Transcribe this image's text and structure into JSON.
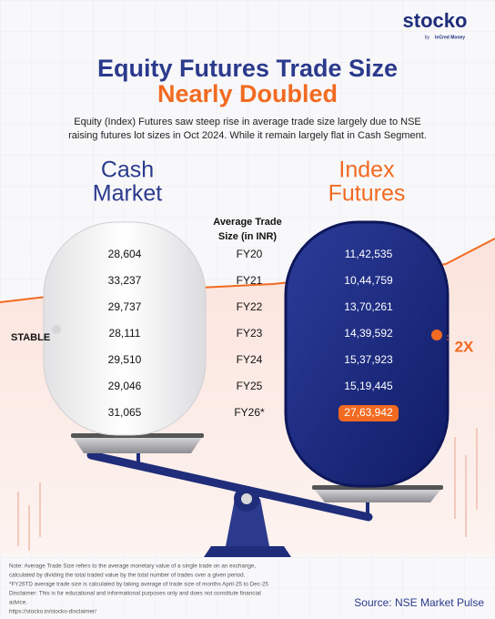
{
  "brand": {
    "name": "stocko",
    "by": "by",
    "partner": "InCred Money"
  },
  "title": {
    "line1": "Equity Futures Trade Size",
    "line2": "Nearly Doubled"
  },
  "description": {
    "line1": "Equity (Index) Futures saw steep rise in average trade size largely due to NSE",
    "line2": "raising futures lot sizes in Oct 2024. While it remain largely flat in Cash Segment."
  },
  "left_heading": {
    "line1": "Cash",
    "line2": "Market"
  },
  "right_heading": {
    "line1": "Index",
    "line2": "Futures"
  },
  "column_header": {
    "line1": "Average Trade",
    "line2": "Size (in INR)"
  },
  "table": {
    "rows": [
      [
        "FY20",
        "28,604",
        "11,42,535"
      ],
      [
        "FY21",
        "33,237",
        "10,44,759"
      ],
      [
        "FY22",
        "29,737",
        "13,70,261"
      ],
      [
        "FY23",
        "28,111",
        "14,39,592"
      ],
      [
        "FY24",
        "29,510",
        "15,37,923"
      ],
      [
        "FY25",
        "29,046",
        "15,19,445"
      ],
      [
        "FY26*",
        "31,065",
        "27,63,942"
      ]
    ]
  },
  "left_label": "STABLE",
  "right_label": "2X",
  "notes": [
    "Note:  Average Trade Size refers to the average monetary value of a single trade on an exchange,",
    "calculated by dividing the total traded value by the total number of trades over a given period.",
    "*FY26TD average trade size is calculated by taking average of trade size of months April-25 to Dec-25",
    "Disclaimer: This is for educational and informational purposes only and does not constitute financial",
    "advice.",
    "https://stocko.in/stocko-disclaimer/"
  ],
  "source": "Source:  NSE Market Pulse"
}
